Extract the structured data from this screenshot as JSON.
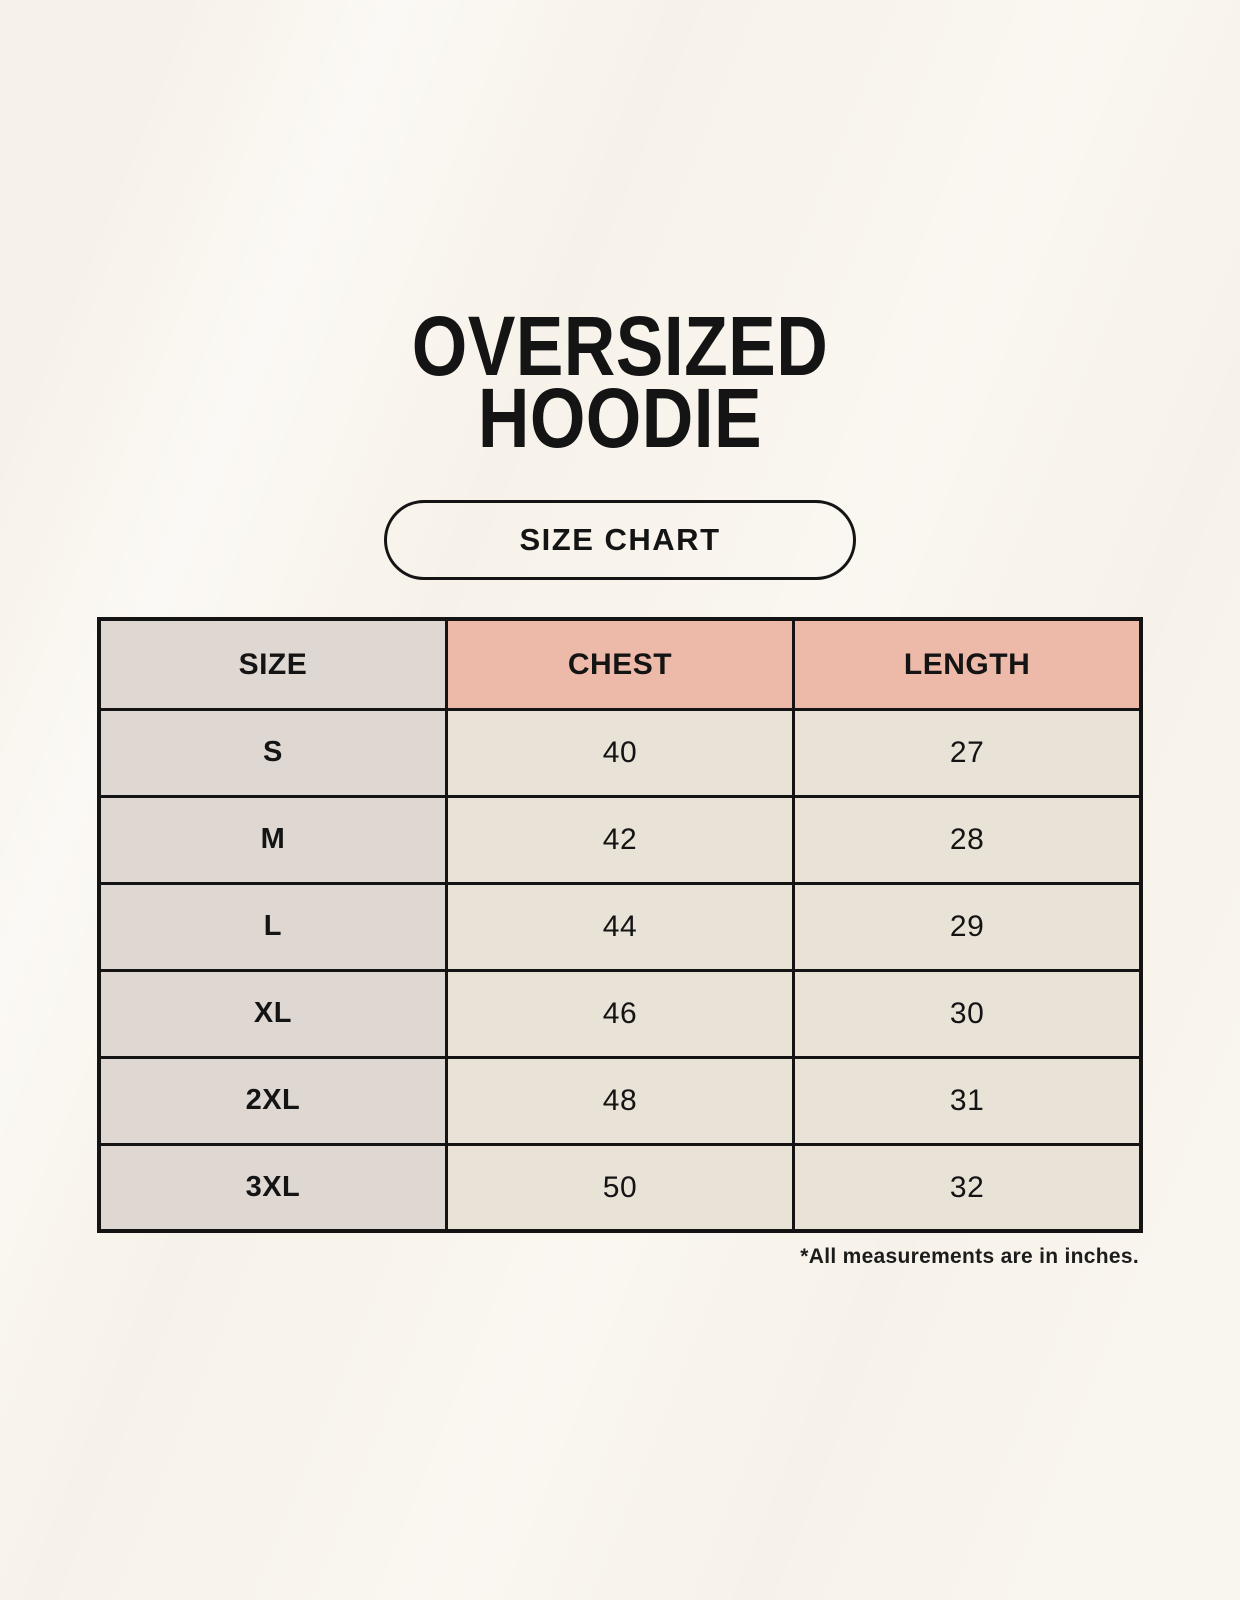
{
  "page": {
    "title_line1": "OVERSIZED",
    "title_line2": "HOODIE",
    "badge_label": "SIZE CHART"
  },
  "chart_data": {
    "type": "table",
    "title": "OVERSIZED HOODIE",
    "subtitle": "SIZE CHART",
    "columns": [
      "SIZE",
      "CHEST",
      "LENGTH"
    ],
    "rows": [
      [
        "S",
        "40",
        "27"
      ],
      [
        "M",
        "42",
        "28"
      ],
      [
        "L",
        "44",
        "29"
      ],
      [
        "XL",
        "46",
        "30"
      ],
      [
        "2XL",
        "48",
        "31"
      ],
      [
        "3XL",
        "50",
        "32"
      ]
    ],
    "annotation": "*All measurements are in inches.",
    "units": "inches"
  },
  "colors": {
    "page_bg": "#F7F2E9",
    "size_col_bg": "#DED7D2",
    "accent_header_bg": "#EDB9A8",
    "cell_bg": "#E9E2D6",
    "border": "#141414",
    "text": "#141414"
  }
}
